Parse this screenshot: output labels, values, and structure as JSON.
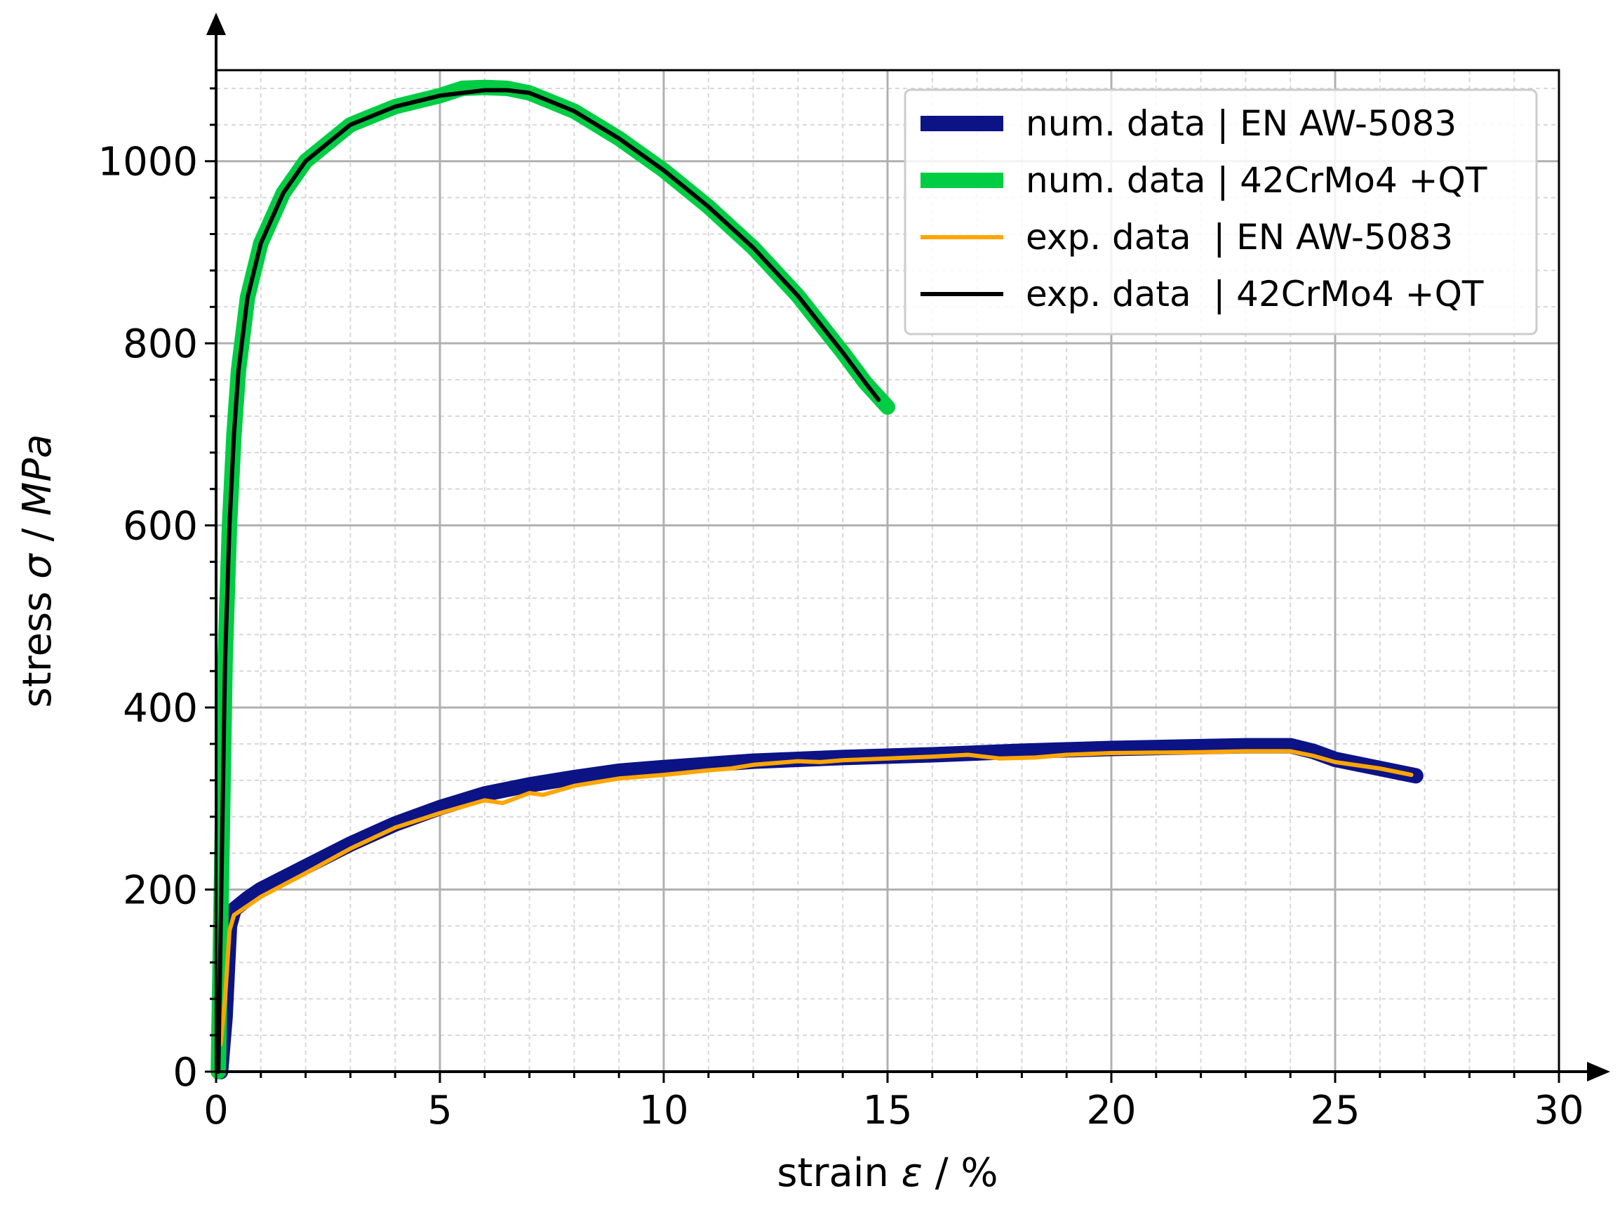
{
  "chart_data": {
    "type": "line",
    "xlabel": {
      "prefix": "strain ",
      "symbol": "ε",
      "suffix": " / %"
    },
    "ylabel": {
      "prefix": "stress ",
      "symbol": "σ",
      "sep": " / ",
      "unit": "MPa"
    },
    "xlim": [
      0,
      30
    ],
    "ylim": [
      0,
      1100
    ],
    "x_ticks": [
      0,
      5,
      10,
      15,
      20,
      25,
      30
    ],
    "y_ticks": [
      0,
      200,
      400,
      600,
      800,
      1000
    ],
    "grid": {
      "major": true,
      "minor": true
    },
    "legend_position": "top-right",
    "series": [
      {
        "name": "num. data | EN AW-5083",
        "color": "#0b1385",
        "style": "thick",
        "x": [
          0.1,
          0.2,
          0.3,
          0.4,
          0.7,
          1.0,
          2.0,
          3.0,
          4.0,
          5.0,
          6.0,
          7.0,
          8.0,
          9.0,
          10.0,
          12.0,
          14.0,
          16.0,
          18.0,
          20.0,
          22.0,
          23.0,
          24.0,
          24.5,
          25.0,
          26.0,
          26.8
        ],
        "y": [
          0,
          60,
          160,
          178,
          190,
          200,
          225,
          250,
          272,
          290,
          305,
          315,
          323,
          330,
          334,
          341,
          345,
          348,
          352,
          355,
          357,
          358,
          358,
          352,
          343,
          333,
          325
        ]
      },
      {
        "name": "num. data | 42CrMo4 +QT",
        "color": "#00cc44",
        "style": "thick",
        "x": [
          0.05,
          0.1,
          0.15,
          0.2,
          0.3,
          0.4,
          0.5,
          0.7,
          1.0,
          1.5,
          2.0,
          3.0,
          4.0,
          5.0,
          5.5,
          6.0,
          6.5,
          7.0,
          8.0,
          9.0,
          10.0,
          11.0,
          12.0,
          13.0,
          14.0,
          14.5,
          15.0
        ],
        "y": [
          0,
          150,
          300,
          450,
          600,
          700,
          770,
          850,
          910,
          965,
          1000,
          1040,
          1060,
          1072,
          1080,
          1081,
          1080,
          1075,
          1055,
          1025,
          990,
          950,
          905,
          852,
          790,
          757,
          730
        ]
      },
      {
        "name": "exp. data  | EN AW-5083",
        "color": "#ffa500",
        "style": "thin",
        "x": [
          0.1,
          0.2,
          0.3,
          0.4,
          0.7,
          1.0,
          2.0,
          3.0,
          4.0,
          5.0,
          6.0,
          6.4,
          7.0,
          7.3,
          8.0,
          8.5,
          9.0,
          10.0,
          11.0,
          11.5,
          12.0,
          13.0,
          13.5,
          14.0,
          15.0,
          16.0,
          16.8,
          17.5,
          18.3,
          19.0,
          20.0,
          22.0,
          23.0,
          24.0,
          24.5,
          25.0,
          26.0,
          26.7
        ],
        "y": [
          30,
          80,
          155,
          172,
          182,
          192,
          218,
          245,
          268,
          284,
          298,
          295,
          306,
          304,
          314,
          318,
          322,
          326,
          331,
          333,
          337,
          341,
          340,
          342,
          344,
          346,
          348,
          344,
          345,
          348,
          350,
          351,
          352,
          352,
          347,
          340,
          333,
          326
        ]
      },
      {
        "name": "exp. data  | 42CrMo4 +QT",
        "color": "#000000",
        "style": "thin",
        "x": [
          0.05,
          0.1,
          0.15,
          0.2,
          0.3,
          0.4,
          0.5,
          0.7,
          1.0,
          1.5,
          2.0,
          3.0,
          4.0,
          5.0,
          6.0,
          6.5,
          7.0,
          8.0,
          9.0,
          10.0,
          11.0,
          12.0,
          13.0,
          14.0,
          14.5,
          14.8
        ],
        "y": [
          0,
          150,
          300,
          450,
          600,
          700,
          770,
          850,
          910,
          965,
          1000,
          1040,
          1060,
          1072,
          1078,
          1078,
          1075,
          1055,
          1025,
          990,
          950,
          905,
          852,
          790,
          757,
          738
        ]
      }
    ]
  }
}
